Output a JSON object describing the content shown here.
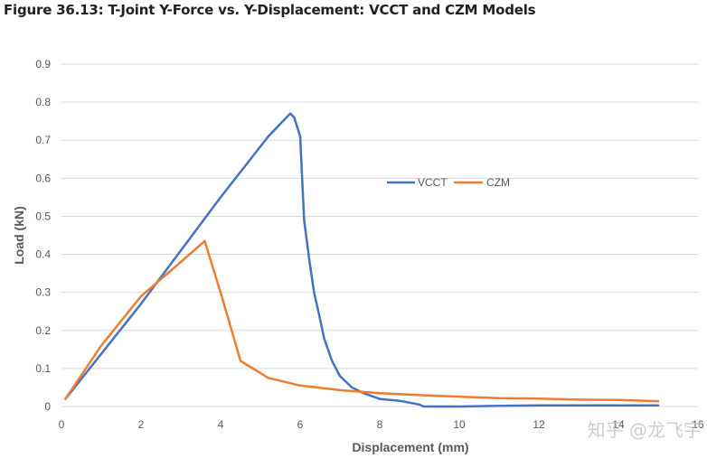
{
  "title": "Figure 36.13: T-Joint Y-Force vs. Y-Displacement: VCCT and CZM Models",
  "watermark": "知乎 @龙飞宇",
  "chart_data": {
    "type": "line",
    "xlabel": "Displacement (mm)",
    "ylabel": "Load (kN)",
    "xlim": [
      0,
      16
    ],
    "ylim": [
      0,
      0.9
    ],
    "xticks": [
      "0",
      "2",
      "4",
      "6",
      "8",
      "10",
      "12",
      "14",
      "16"
    ],
    "yticks": [
      "0",
      "0.1",
      "0.2",
      "0.3",
      "0.4",
      "0.5",
      "0.6",
      "0.7",
      "0.8",
      "0.9"
    ],
    "grid": "horizontal",
    "legend_position": "right-center",
    "series": [
      {
        "name": "VCCT",
        "color": "#4472C4",
        "x": [
          0.1,
          2.0,
          4.0,
          5.2,
          5.75,
          5.85,
          6.0,
          6.05,
          6.1,
          6.25,
          6.35,
          6.5,
          6.6,
          6.8,
          7.0,
          7.3,
          7.6,
          8.0,
          8.5,
          9.0,
          9.1,
          10,
          11,
          12,
          13,
          14,
          15
        ],
        "y": [
          0.02,
          0.27,
          0.55,
          0.71,
          0.77,
          0.76,
          0.71,
          0.6,
          0.49,
          0.37,
          0.3,
          0.23,
          0.18,
          0.12,
          0.08,
          0.05,
          0.035,
          0.02,
          0.015,
          0.005,
          0.0,
          0.0,
          0.002,
          0.003,
          0.003,
          0.003,
          0.003
        ]
      },
      {
        "name": "CZM",
        "color": "#ED7D31",
        "x": [
          0.1,
          1.0,
          2.0,
          3.0,
          3.6,
          4.0,
          4.5,
          5.2,
          6.0,
          7.0,
          8.0,
          9.0,
          10,
          11,
          12,
          13,
          14,
          15
        ],
        "y": [
          0.02,
          0.16,
          0.29,
          0.38,
          0.435,
          0.3,
          0.12,
          0.075,
          0.055,
          0.043,
          0.035,
          0.03,
          0.026,
          0.022,
          0.021,
          0.018,
          0.017,
          0.014
        ]
      }
    ]
  }
}
